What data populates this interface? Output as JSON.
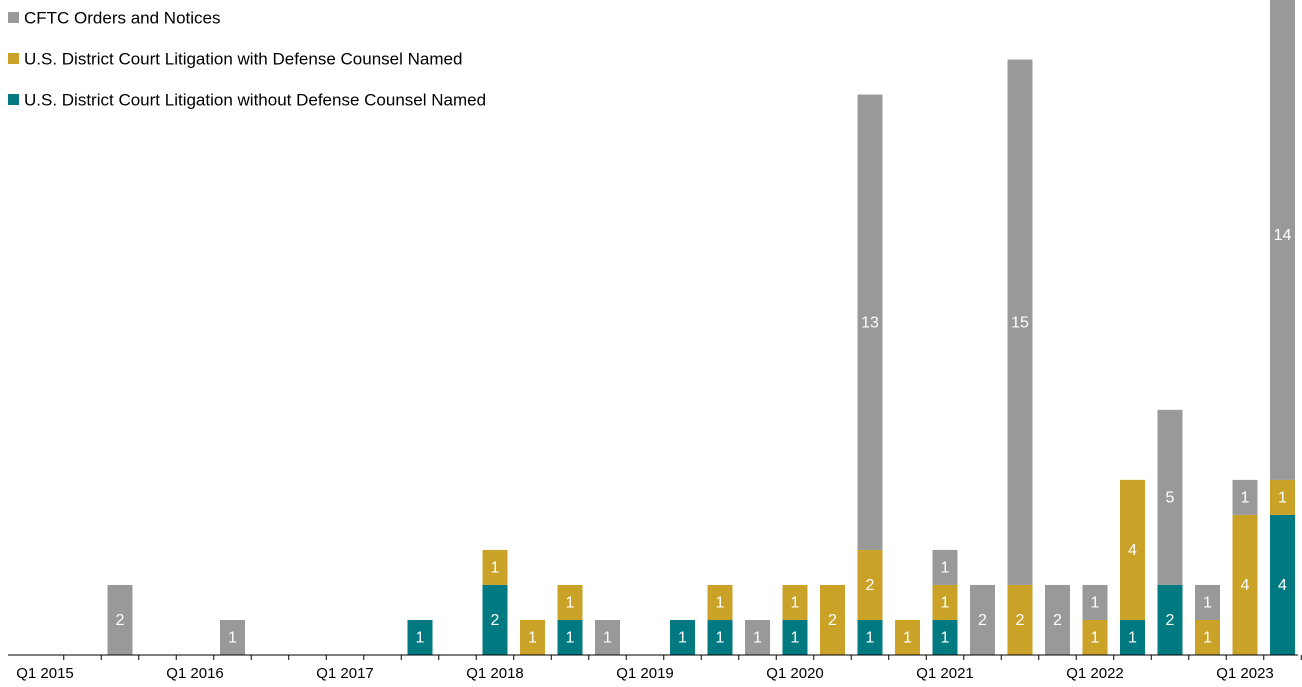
{
  "chart_data": {
    "type": "stacked-bar",
    "categories": [
      "Q1 2015",
      null,
      null,
      null,
      "Q1 2016",
      null,
      null,
      null,
      "Q1 2017",
      null,
      null,
      null,
      "Q1 2018",
      null,
      null,
      null,
      "Q1 2019",
      null,
      null,
      null,
      "Q1 2020",
      null,
      null,
      null,
      "Q1 2021",
      null,
      null,
      null,
      "Q1 2022",
      null,
      null,
      null,
      "Q1 2023",
      null
    ],
    "series": [
      {
        "name": "CFTC Orders and Notices",
        "color": "#999999",
        "values": [
          null,
          null,
          2,
          null,
          null,
          1,
          null,
          null,
          null,
          null,
          null,
          null,
          null,
          null,
          null,
          1,
          null,
          null,
          null,
          1,
          null,
          null,
          13,
          null,
          1,
          2,
          15,
          2,
          1,
          null,
          5,
          1,
          1,
          14
        ]
      },
      {
        "name": "U.S. District Court Litigation with Defense Counsel Named",
        "color": "#c9a227",
        "values": [
          null,
          null,
          null,
          null,
          null,
          null,
          null,
          null,
          null,
          null,
          null,
          null,
          1,
          1,
          1,
          null,
          null,
          null,
          1,
          null,
          1,
          2,
          2,
          1,
          1,
          null,
          2,
          null,
          1,
          4,
          null,
          1,
          4,
          1
        ]
      },
      {
        "name": "U.S. District Court Litigation without Defense Counsel Named",
        "color": "#007a80",
        "values": [
          null,
          null,
          null,
          null,
          null,
          null,
          null,
          null,
          null,
          null,
          1,
          null,
          2,
          null,
          1,
          null,
          null,
          1,
          1,
          null,
          1,
          null,
          1,
          null,
          1,
          null,
          null,
          null,
          null,
          1,
          2,
          null,
          null,
          4
        ]
      }
    ],
    "ylim": [
      0,
      18.7
    ]
  }
}
